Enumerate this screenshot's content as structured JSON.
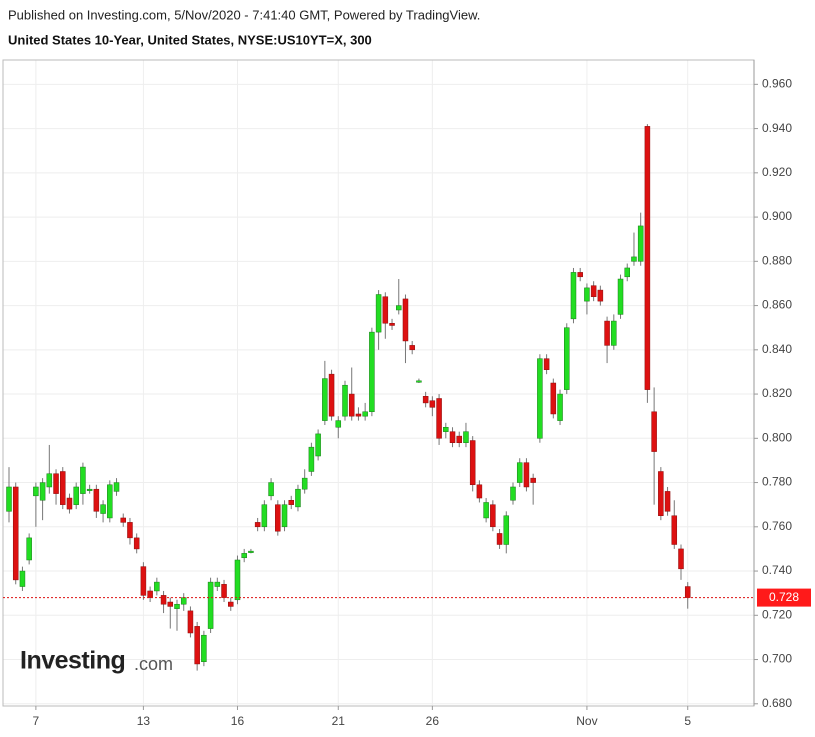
{
  "chart_data": {
    "type": "candlestick",
    "title": "Published on Investing.com, 5/Nov/2020 - 7:41:40 GMT, Powered by TradingView.",
    "subtitle": "United States 10-Year, United States, NYSE:US10YT=X, 300",
    "logo": {
      "brand": "Investing",
      "suffix": ".com"
    },
    "up_color": "#22dd22",
    "down_color": "#dd1111",
    "categories": [
      null,
      null,
      null,
      null,
      "7",
      null,
      null,
      null,
      null,
      null,
      null,
      null,
      null,
      null,
      null,
      null,
      null,
      null,
      null,
      null,
      "13",
      null,
      null,
      null,
      null,
      null,
      null,
      null,
      null,
      null,
      null,
      null,
      null,
      null,
      "16",
      null,
      null,
      null,
      null,
      null,
      null,
      null,
      null,
      null,
      null,
      null,
      null,
      null,
      null,
      "21",
      null,
      null,
      null,
      null,
      null,
      null,
      null,
      null,
      null,
      null,
      null,
      null,
      null,
      "26",
      null,
      null,
      null,
      null,
      null,
      null,
      null,
      null,
      null,
      null,
      null,
      null,
      null,
      null,
      null,
      null,
      null,
      null,
      null,
      null,
      null,
      null,
      "Nov",
      null,
      null,
      null,
      null,
      null,
      null,
      null,
      null,
      null,
      null,
      null,
      null,
      null,
      null,
      "5"
    ],
    "open": [
      0.767,
      0.778,
      0.733,
      0.745,
      0.774,
      0.772,
      0.778,
      0.784,
      0.785,
      0.773,
      0.77,
      0.775,
      0.777,
      0.777,
      0.766,
      0.764,
      0.776,
      0.764,
      0.762,
      0.755,
      0.742,
      0.731,
      0.731,
      0.729,
      0.726,
      0.723,
      0.725,
      0.722,
      0.715,
      0.699,
      0.714,
      0.733,
      0.734,
      0.726,
      0.727,
      0.746,
      0.749,
      0.762,
      0.76,
      0.774,
      0.77,
      0.76,
      0.772,
      0.769,
      0.777,
      0.785,
      0.792,
      0.808,
      0.829,
      0.805,
      0.81,
      0.82,
      0.811,
      0.81,
      0.812,
      0.848,
      0.864,
      0.852,
      0.858,
      0.863,
      0.842,
      0.826,
      0.819,
      0.817,
      0.818,
      0.803,
      0.803,
      0.801,
      0.798,
      0.799,
      0.779,
      0.764,
      0.77,
      0.757,
      0.752,
      0.772,
      0.78,
      0.789,
      0.782,
      0.8,
      0.836,
      0.825,
      0.808,
      0.822,
      0.854,
      0.875,
      0.862,
      0.869,
      0.867,
      0.853,
      0.842,
      0.856,
      0.873,
      0.88,
      0.88,
      0.941,
      0.812,
      0.785,
      0.776,
      0.765,
      0.75,
      0.733
    ],
    "high": [
      0.787,
      0.78,
      0.742,
      0.757,
      0.78,
      0.782,
      0.797,
      0.786,
      0.787,
      0.775,
      0.78,
      0.789,
      0.779,
      0.779,
      0.772,
      0.781,
      0.782,
      0.766,
      0.764,
      0.757,
      0.744,
      0.733,
      0.737,
      0.731,
      0.728,
      0.727,
      0.73,
      0.724,
      0.717,
      0.713,
      0.737,
      0.737,
      0.736,
      0.728,
      0.747,
      0.75,
      0.75,
      0.764,
      0.772,
      0.782,
      0.772,
      0.772,
      0.774,
      0.779,
      0.786,
      0.798,
      0.804,
      0.835,
      0.831,
      0.81,
      0.826,
      0.832,
      0.814,
      0.816,
      0.85,
      0.867,
      0.866,
      0.854,
      0.872,
      0.865,
      0.844,
      0.827,
      0.821,
      0.819,
      0.82,
      0.807,
      0.805,
      0.803,
      0.807,
      0.801,
      0.781,
      0.773,
      0.772,
      0.759,
      0.767,
      0.78,
      0.791,
      0.791,
      0.784,
      0.838,
      0.838,
      0.827,
      0.822,
      0.852,
      0.877,
      0.877,
      0.87,
      0.871,
      0.869,
      0.855,
      0.856,
      0.874,
      0.879,
      0.893,
      0.902,
      0.942,
      0.823,
      0.787,
      0.778,
      0.772,
      0.752,
      0.735
    ],
    "low": [
      0.762,
      0.734,
      0.731,
      0.743,
      0.76,
      0.763,
      0.775,
      0.77,
      0.768,
      0.766,
      0.768,
      0.77,
      0.775,
      0.764,
      0.762,
      0.762,
      0.774,
      0.76,
      0.752,
      0.748,
      0.727,
      0.726,
      0.729,
      0.721,
      0.714,
      0.713,
      0.722,
      0.71,
      0.695,
      0.697,
      0.712,
      0.731,
      0.726,
      0.722,
      0.725,
      0.744,
      0.748,
      0.758,
      0.758,
      0.772,
      0.756,
      0.758,
      0.768,
      0.767,
      0.775,
      0.783,
      0.79,
      0.806,
      0.808,
      0.8,
      0.808,
      0.808,
      0.808,
      0.808,
      0.81,
      0.84,
      0.845,
      0.849,
      0.856,
      0.834,
      0.838,
      0.825,
      0.814,
      0.81,
      0.797,
      0.8,
      0.796,
      0.796,
      0.796,
      0.776,
      0.771,
      0.762,
      0.758,
      0.75,
      0.748,
      0.77,
      0.778,
      0.776,
      0.77,
      0.798,
      0.829,
      0.809,
      0.806,
      0.82,
      0.852,
      0.871,
      0.856,
      0.862,
      0.86,
      0.834,
      0.84,
      0.854,
      0.871,
      0.878,
      0.878,
      0.816,
      0.77,
      0.763,
      0.765,
      0.75,
      0.736,
      0.723
    ],
    "close": [
      0.778,
      0.736,
      0.74,
      0.755,
      0.778,
      0.78,
      0.784,
      0.775,
      0.77,
      0.768,
      0.778,
      0.787,
      0.777,
      0.767,
      0.77,
      0.779,
      0.78,
      0.762,
      0.755,
      0.75,
      0.729,
      0.728,
      0.735,
      0.725,
      0.724,
      0.725,
      0.728,
      0.712,
      0.698,
      0.711,
      0.735,
      0.735,
      0.728,
      0.724,
      0.745,
      0.748,
      0.749,
      0.76,
      0.77,
      0.78,
      0.758,
      0.77,
      0.77,
      0.777,
      0.782,
      0.796,
      0.802,
      0.827,
      0.81,
      0.808,
      0.824,
      0.81,
      0.81,
      0.812,
      0.848,
      0.865,
      0.852,
      0.851,
      0.86,
      0.844,
      0.84,
      0.826,
      0.816,
      0.814,
      0.8,
      0.805,
      0.798,
      0.798,
      0.803,
      0.779,
      0.773,
      0.771,
      0.76,
      0.752,
      0.765,
      0.778,
      0.789,
      0.778,
      0.78,
      0.836,
      0.831,
      0.811,
      0.82,
      0.85,
      0.875,
      0.873,
      0.868,
      0.864,
      0.862,
      0.842,
      0.853,
      0.872,
      0.877,
      0.882,
      0.896,
      0.822,
      0.794,
      0.765,
      0.767,
      0.752,
      0.741,
      0.728
    ],
    "last_value": 0.728,
    "ylim": [
      0.679,
      0.971
    ],
    "yticks": [
      {
        "value": 0.68,
        "label": "0.680"
      },
      {
        "value": 0.7,
        "label": "0.700"
      },
      {
        "value": 0.72,
        "label": "0.720"
      },
      {
        "value": 0.74,
        "label": "0.740"
      },
      {
        "value": 0.76,
        "label": "0.760"
      },
      {
        "value": 0.78,
        "label": "0.780"
      },
      {
        "value": 0.8,
        "label": "0.800"
      },
      {
        "value": 0.82,
        "label": "0.820"
      },
      {
        "value": 0.84,
        "label": "0.840"
      },
      {
        "value": 0.86,
        "label": "0.860"
      },
      {
        "value": 0.88,
        "label": "0.880"
      },
      {
        "value": 0.9,
        "label": "0.900"
      },
      {
        "value": 0.92,
        "label": "0.920"
      },
      {
        "value": 0.94,
        "label": "0.940"
      },
      {
        "value": 0.96,
        "label": "0.960"
      }
    ],
    "grid": true
  }
}
